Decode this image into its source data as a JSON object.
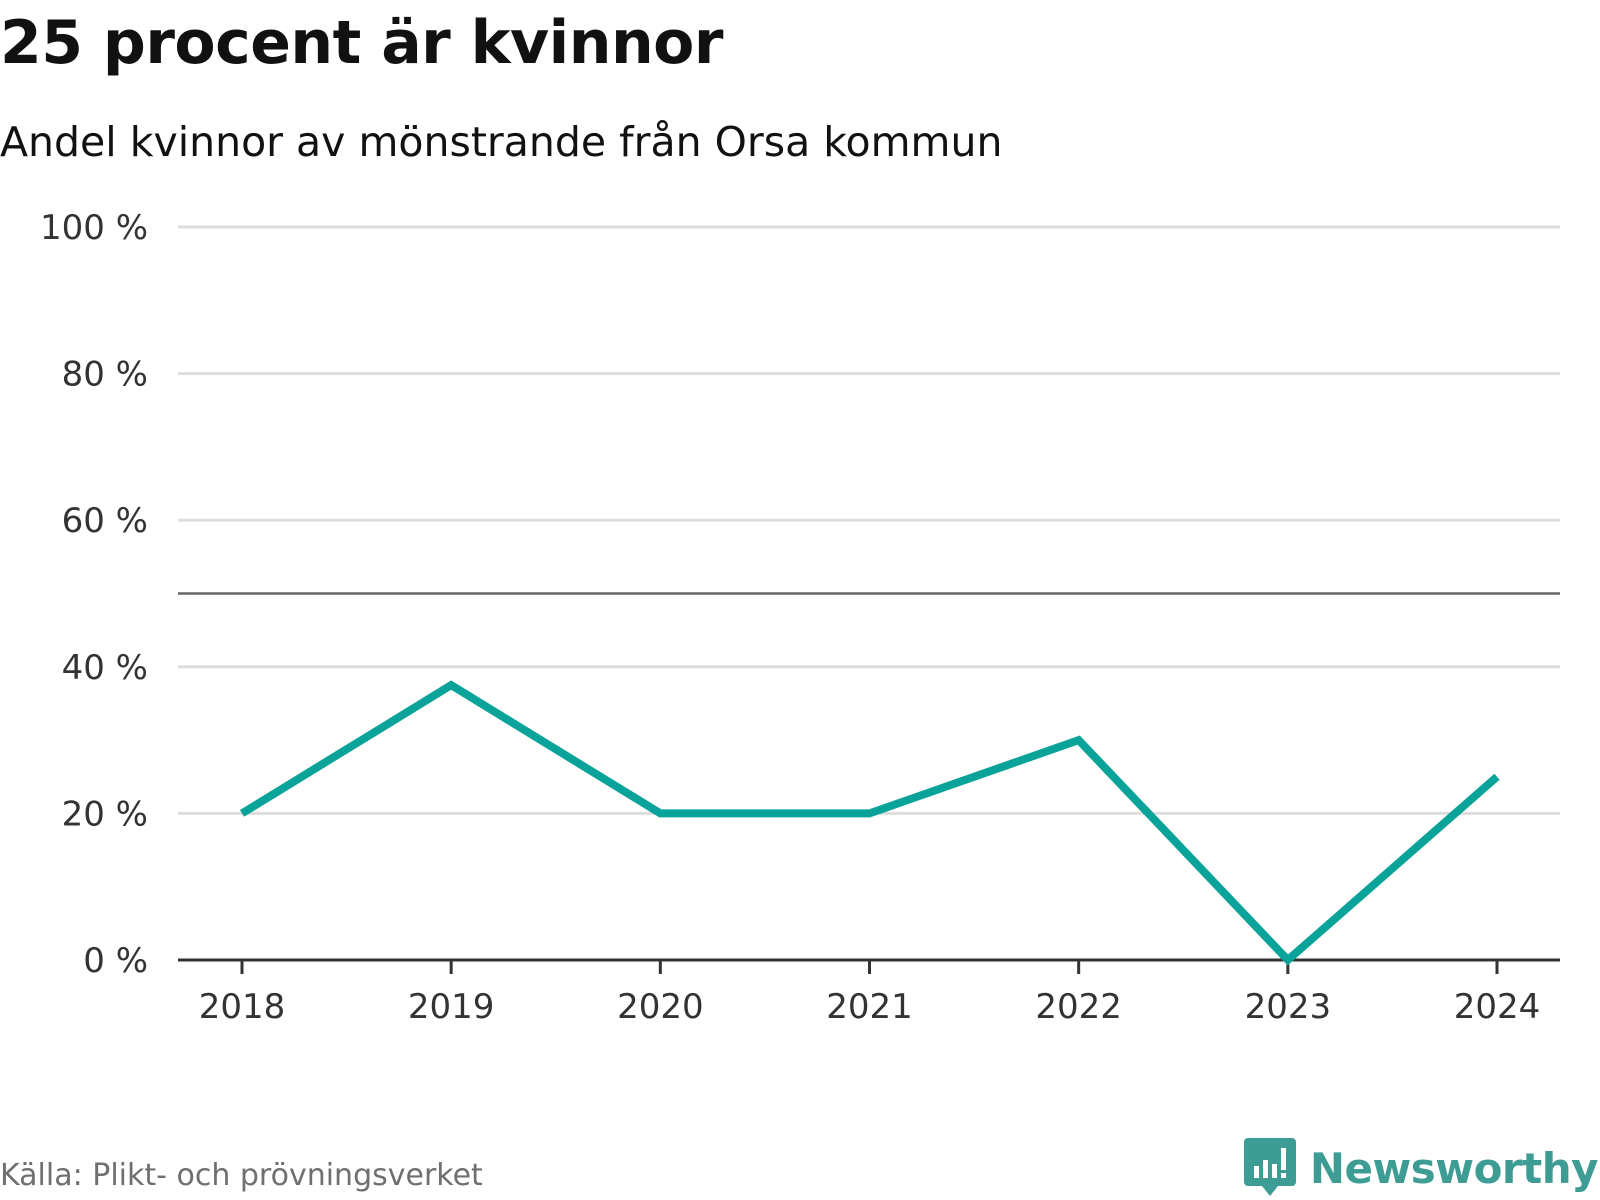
{
  "chart_data": {
    "type": "line",
    "title": "25 procent är kvinnor",
    "subtitle": "Andel kvinnor av mönstrande från Orsa kommun",
    "categories": [
      "2018",
      "2019",
      "2020",
      "2021",
      "2022",
      "2023",
      "2024"
    ],
    "series": [
      {
        "name": "Andel kvinnor",
        "values": [
          20,
          37.5,
          20,
          20,
          30,
          0,
          25
        ],
        "color": "#0aa39a"
      }
    ],
    "ylim": [
      0,
      100
    ],
    "yticks": [
      0,
      20,
      40,
      60,
      80,
      100
    ],
    "ytick_labels": [
      "0 %",
      "20 %",
      "40 %",
      "60 %",
      "80 %",
      "100 %"
    ],
    "reference_line": 50,
    "grid": true,
    "xlabel": "",
    "ylabel": ""
  },
  "footer": {
    "source": "Källa: Plikt- och prövningsverket",
    "brand": "Newsworthy"
  },
  "colors": {
    "grid": "#dddddd",
    "reference": "#666666",
    "axis": "#333333",
    "brand": "#3d9c94"
  },
  "icons": {
    "brand_logo": "bar-chart-speech-bubble-icon"
  }
}
